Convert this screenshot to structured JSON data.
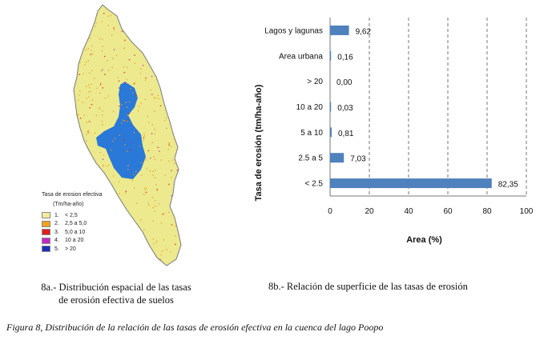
{
  "map": {
    "legend_title": "Tasa de erosion efectiva",
    "legend_subtitle": "(Tm/ha-año)",
    "legend_items": [
      {
        "num": "1.",
        "label": "< 2,5",
        "color": "#f3ec9b"
      },
      {
        "num": "2.",
        "label": "2,5 a 5,0",
        "color": "#f1a21c"
      },
      {
        "num": "3.",
        "label": "5,0 a 10",
        "color": "#e01c1c"
      },
      {
        "num": "4.",
        "label": "10 a 20",
        "color": "#c428c4"
      },
      {
        "num": "5.",
        "label": "> 20",
        "color": "#1c2fb5"
      }
    ],
    "colors": {
      "basin": "#ece98f",
      "lake": "#2a78d8",
      "outline": "#7a7a7a"
    }
  },
  "chart_data": {
    "type": "bar",
    "orientation": "horizontal",
    "categories": [
      "Lagos y lagunas",
      "Area urbana",
      "> 20",
      "10 a 20",
      "5 a 10",
      "2.5 a 5",
      "< 2.5"
    ],
    "values": [
      9.62,
      0.16,
      0.0,
      0.03,
      0.81,
      7.03,
      82.35
    ],
    "value_labels": [
      "9,62",
      "0,16",
      "0,00",
      "0,03",
      "0,81",
      "7,03",
      "82,35"
    ],
    "xlabel": "Area (%)",
    "ylabel": "Tasa de erosión (tm/ha-año)",
    "xlim": [
      0,
      100
    ],
    "xticks": [
      0,
      20,
      40,
      60,
      80,
      100
    ],
    "grid": "vertical dashed",
    "bar_color": "#4f81bd"
  },
  "captions": {
    "a_line1": "8a.- Distribución espacial de las tasas",
    "a_line2": "de erosión efectiva de suelos",
    "b": "8b.- Relación de superficie de las tasas de erosión",
    "figure": "Figura 8, Distribución de la relación de las tasas de erosión efectiva en la cuenca del lago Poopo"
  }
}
